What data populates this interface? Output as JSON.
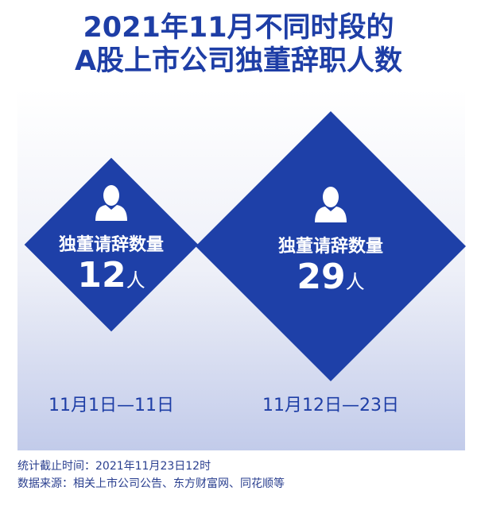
{
  "title": {
    "line1": "2021年11月不同时段的",
    "line2": "A股上市公司独董辞职人数"
  },
  "colors": {
    "accent": "#1e40a8",
    "panel_bottom": "#c2cbea"
  },
  "chart_data": {
    "type": "bar",
    "categories": [
      "11月1日—11日",
      "11月12日—23日"
    ],
    "values": [
      12,
      29
    ],
    "unit": "人",
    "value_label": "独董请辞数量",
    "icon": "person-icon"
  },
  "footer": {
    "cutoff": "统计截止时间：2021年11月23日12时",
    "source": "数据来源：相关上市公司公告、东方财富网、同花顺等"
  }
}
